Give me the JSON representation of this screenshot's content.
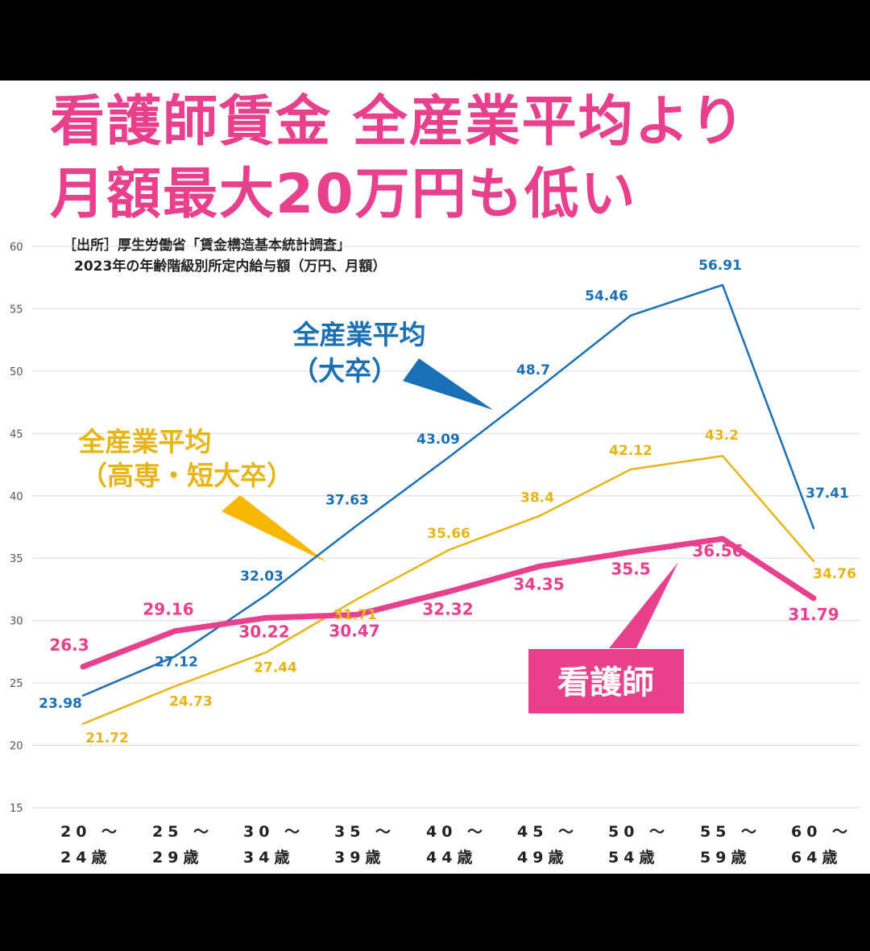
{
  "headline": {
    "line1": "看護師賃金 全産業平均より",
    "line2": "月額最大20万円も低い"
  },
  "source": {
    "line1": "［出所］厚生労働省「賃金構造基本統計調査」",
    "line2": "2023年の年齢階級別所定内給与額（万円、月額）"
  },
  "callouts": {
    "university": [
      "全産業平均",
      "（大卒）"
    ],
    "college": [
      "全産業平均",
      "（高専・短大卒）"
    ],
    "nurse": "看護師"
  },
  "colors": {
    "university": "#1a6fb5",
    "college": "#e6b514",
    "nurse": "#e8408c"
  },
  "chart_data": {
    "type": "line",
    "title": "看護師賃金 全産業平均より 月額最大20万円も低い",
    "xlabel": "",
    "ylabel": "",
    "ylim": [
      15,
      60
    ],
    "yticks": [
      15,
      20,
      25,
      30,
      35,
      40,
      45,
      50,
      55,
      60
    ],
    "grid": true,
    "categories": [
      [
        "20 ～",
        "24歳"
      ],
      [
        "25 ～",
        "29歳"
      ],
      [
        "30 ～",
        "34歳"
      ],
      [
        "35 ～",
        "39歳"
      ],
      [
        "40 ～",
        "44歳"
      ],
      [
        "45 ～",
        "49歳"
      ],
      [
        "50 ～",
        "54歳"
      ],
      [
        "55 ～",
        "59歳"
      ],
      [
        "60 ～",
        "64歳"
      ]
    ],
    "series": [
      {
        "name": "全産業平均（大卒）",
        "key": "university",
        "values": [
          23.98,
          27.12,
          32.03,
          37.63,
          43.09,
          48.7,
          54.46,
          56.91,
          37.41
        ],
        "labels": [
          "23.98",
          "27.12",
          "32.03",
          "37.63",
          "43.09",
          "48.7",
          "54.46",
          "56.91",
          "37.41"
        ]
      },
      {
        "name": "全産業平均（高専・短大卒）",
        "key": "college",
        "values": [
          21.72,
          24.73,
          27.44,
          31.71,
          35.66,
          38.4,
          42.12,
          43.2,
          34.76
        ],
        "labels": [
          "21.72",
          "24.73",
          "27.44",
          "31.71",
          "35.66",
          "38.4",
          "42.12",
          "43.2",
          "34.76"
        ]
      },
      {
        "name": "看護師",
        "key": "nurse",
        "values": [
          26.3,
          29.16,
          30.22,
          30.47,
          32.32,
          34.35,
          35.5,
          36.56,
          31.79
        ],
        "labels": [
          "26.3",
          "29.16",
          "30.22",
          "30.47",
          "32.32",
          "34.35",
          "35.5",
          "36.56",
          "31.79"
        ]
      }
    ]
  }
}
